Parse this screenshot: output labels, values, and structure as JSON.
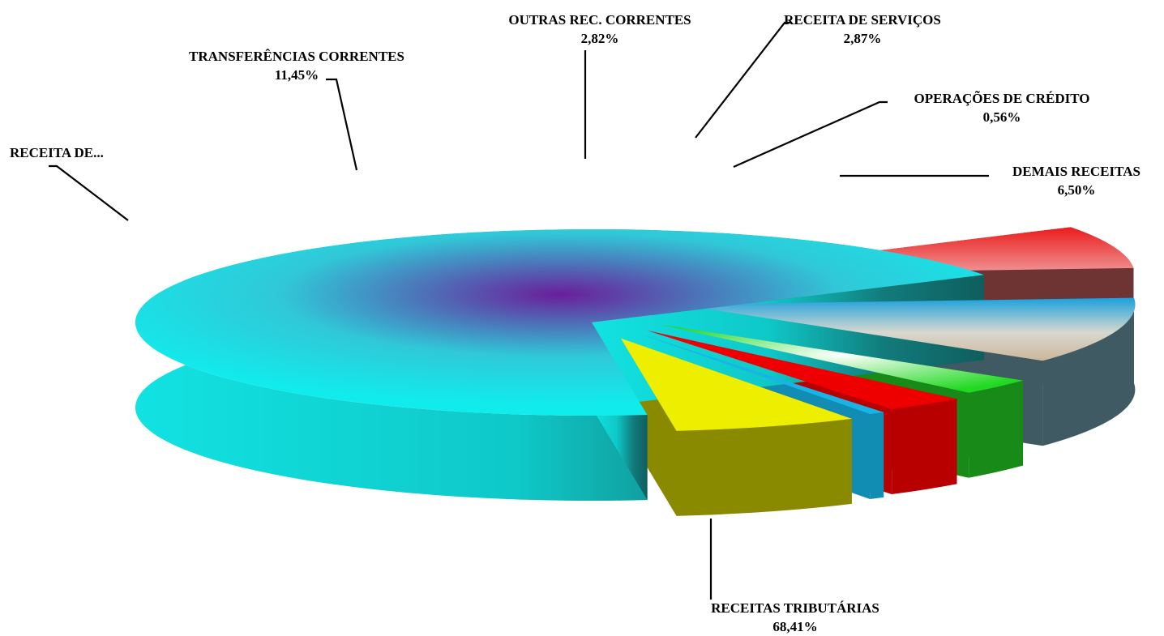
{
  "chart_data": {
    "type": "pie",
    "slices": [
      {
        "label": "RECEITAS TRIBUTÁRIAS",
        "value": 68.41,
        "value_label": "68,41%",
        "color": "#11e6e6"
      },
      {
        "label": "RECEITA DE...",
        "value": 7.39,
        "value_label": "",
        "color": "#e81b1b"
      },
      {
        "label": "TRANSFERÊNCIAS CORRENTES",
        "value": 11.45,
        "value_label": "11,45%",
        "color": "#21a6dc"
      },
      {
        "label": "OUTRAS REC. CORRENTES",
        "value": 2.82,
        "value_label": "2,82%",
        "color": "#2ee82e"
      },
      {
        "label": "RECEITA DE SERVIÇOS",
        "value": 2.87,
        "value_label": "2,87%",
        "color": "#ee0000"
      },
      {
        "label": "OPERAÇÕES DE CRÉDITO",
        "value": 0.56,
        "value_label": "0,56%",
        "color": "#1ab3e6"
      },
      {
        "label": "DEMAIS RECEITAS",
        "value": 6.5,
        "value_label": "6,50%",
        "color": "#eeee00"
      }
    ]
  }
}
